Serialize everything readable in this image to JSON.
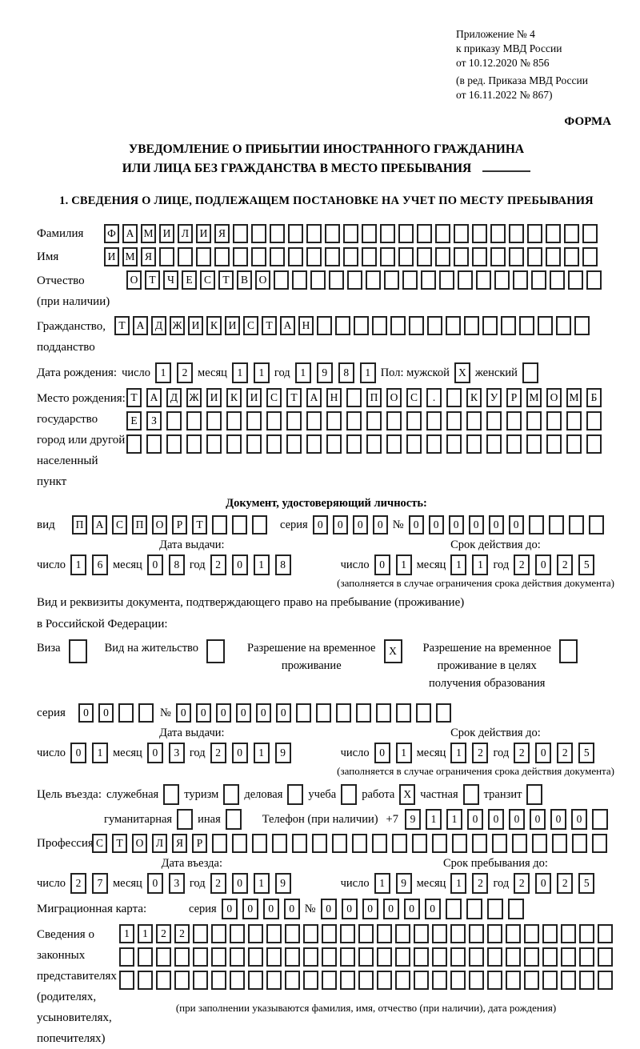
{
  "header": {
    "appendix_lines": [
      "Приложение № 4",
      "к приказу МВД России",
      "от 10.12.2020 № 856"
    ],
    "revision_lines": [
      "(в ред. Приказа МВД России",
      "от 16.11.2022 № 867)"
    ],
    "forma": "ФОРМА"
  },
  "title": {
    "line1": "УВЕДОМЛЕНИЕ О ПРИБЫТИИ ИНОСТРАННОГО ГРАЖДАНИНА",
    "line2": "ИЛИ ЛИЦА БЕЗ ГРАЖДАНСТВА В МЕСТО ПРЕБЫВАНИЯ"
  },
  "section1_heading": "1. СВЕДЕНИЯ О ЛИЦЕ, ПОДЛЕЖАЩЕМ ПОСТАНОВКЕ НА УЧЕТ ПО МЕСТУ ПРЕБЫВАНИЯ",
  "date_words": {
    "d": "число",
    "m": "месяц",
    "y": "год"
  },
  "fields": {
    "surname": {
      "label": "Фамилия",
      "boxes": {
        "text": "ФАМИЛИЯ",
        "len": 27
      }
    },
    "name": {
      "label": "Имя",
      "boxes": {
        "text": "ИМЯ",
        "len": 27
      }
    },
    "patronymic": {
      "label": "Отчество\n(при наличии)",
      "boxes": {
        "text": "ОТЧЕСТВО",
        "len": 26
      }
    },
    "citizenship": {
      "label": "Гражданство,\nподданство",
      "boxes": {
        "text": "ТАДЖИКИСТАН",
        "len": 26
      }
    }
  },
  "birth": {
    "label": "Дата рождения:",
    "d": {
      "text": "12"
    },
    "m": {
      "text": "11"
    },
    "y": {
      "text": "1981"
    },
    "sex_male_label": "Пол: мужской",
    "male_box": {
      "text": "X",
      "len": 1
    },
    "sex_female_label": "женский",
    "female_box": {
      "text": "",
      "len": 1
    }
  },
  "birthplace": {
    "label": "Место рождения:\nгосударство\nгород или другой\nнаселенный пункт",
    "rows": [
      {
        "text": "ТАДЖИКИСТАН ПОС. КУРМОМБ",
        "len": 24
      },
      {
        "text": "ЕЗ",
        "len": 24
      },
      {
        "text": "",
        "len": 24
      }
    ]
  },
  "docid": {
    "heading": "Документ, удостоверяющий личность:",
    "vid_label": "вид",
    "vid": {
      "text": "ПАСПОРТ",
      "len": 10
    },
    "seriya_label": "серия",
    "seriya": {
      "text": "0000",
      "len": 4
    },
    "num_label": "№",
    "num": {
      "text": "000000",
      "len": 10
    },
    "issue": {
      "head": "Дата выдачи:",
      "d": {
        "text": "16"
      },
      "m": {
        "text": "08"
      },
      "y": {
        "text": "2018"
      }
    },
    "valid": {
      "head": "Срок действия до:",
      "d": {
        "text": "01"
      },
      "m": {
        "text": "11"
      },
      "y": {
        "text": "2025"
      }
    },
    "note": "(заполняется в случае ограничения срока действия документа)"
  },
  "residence": {
    "para1": "Вид и реквизиты документа, подтверждающего право на пребывание (проживание)",
    "para2": "в Российской Федерации:",
    "options": [
      {
        "label": "Виза",
        "box": {
          "text": "",
          "len": 1
        }
      },
      {
        "label": "Вид на жительство",
        "box": {
          "text": "",
          "len": 1
        }
      },
      {
        "label": "Разрешение на временное\nпроживание",
        "box": {
          "text": "X",
          "len": 1
        }
      },
      {
        "label": "Разрешение на временное\nпроживание в целях\nполучения образования",
        "box": {
          "text": "",
          "len": 1
        }
      }
    ],
    "seriya_label": "серия",
    "seriya": {
      "text": "00",
      "len": 4
    },
    "num_label": "№",
    "num": {
      "text": "000000",
      "len": 14
    },
    "issue": {
      "head": "Дата выдачи:",
      "d": {
        "text": "01"
      },
      "m": {
        "text": "03"
      },
      "y": {
        "text": "2019"
      }
    },
    "valid": {
      "head": "Срок действия до:",
      "d": {
        "text": "01"
      },
      "m": {
        "text": "12"
      },
      "y": {
        "text": "2025"
      }
    },
    "note": "(заполняется в случае ограничения срока действия документа)"
  },
  "purpose": {
    "label": "Цель въезда:",
    "options": [
      {
        "label": "служебная",
        "box": {
          "text": "",
          "len": 1
        }
      },
      {
        "label": "туризм",
        "box": {
          "text": "",
          "len": 1
        }
      },
      {
        "label": "деловая",
        "box": {
          "text": "",
          "len": 1
        }
      },
      {
        "label": "учеба",
        "box": {
          "text": "",
          "len": 1
        }
      },
      {
        "label": "работа",
        "box": {
          "text": "X",
          "len": 1
        }
      },
      {
        "label": "частная",
        "box": {
          "text": "",
          "len": 1
        }
      },
      {
        "label": "транзит",
        "box": {
          "text": "",
          "len": 1
        }
      }
    ],
    "row2_options": [
      {
        "label": "гуманитарная",
        "box": {
          "text": "",
          "len": 1
        }
      },
      {
        "label": "иная",
        "box": {
          "text": "",
          "len": 1
        }
      }
    ],
    "phone_label": "Телефон (при наличии)",
    "phone_prefix": "+7",
    "phone": {
      "text": "911000000",
      "len": 10
    }
  },
  "profession": {
    "label": "Профессия",
    "boxes": {
      "text": "СТОЛЯР",
      "len": 26
    }
  },
  "entry": {
    "issue": {
      "head": "Дата въезда:",
      "d": {
        "text": "27"
      },
      "m": {
        "text": "03"
      },
      "y": {
        "text": "2019"
      }
    },
    "stay": {
      "head": "Срок пребывания до:",
      "d": {
        "text": "19"
      },
      "m": {
        "text": "12"
      },
      "y": {
        "text": "2025"
      }
    }
  },
  "migcard": {
    "label": "Миграционная карта:",
    "seriya_label": "серия",
    "seriya": {
      "text": "0000",
      "len": 4
    },
    "num_label": "№",
    "num": {
      "text": "000000",
      "len": 10
    }
  },
  "representatives": {
    "label": "Сведения о\nзаконных\nпредставителях\n(родителях,\nусыновителях,\nпопечителях)",
    "rows": [
      {
        "text": "1122",
        "len": 27
      },
      {
        "text": "",
        "len": 27
      },
      {
        "text": "",
        "len": 27
      }
    ],
    "note": "(при заполнении указываются фамилия, имя, отчество (при наличии), дата рождения)"
  }
}
